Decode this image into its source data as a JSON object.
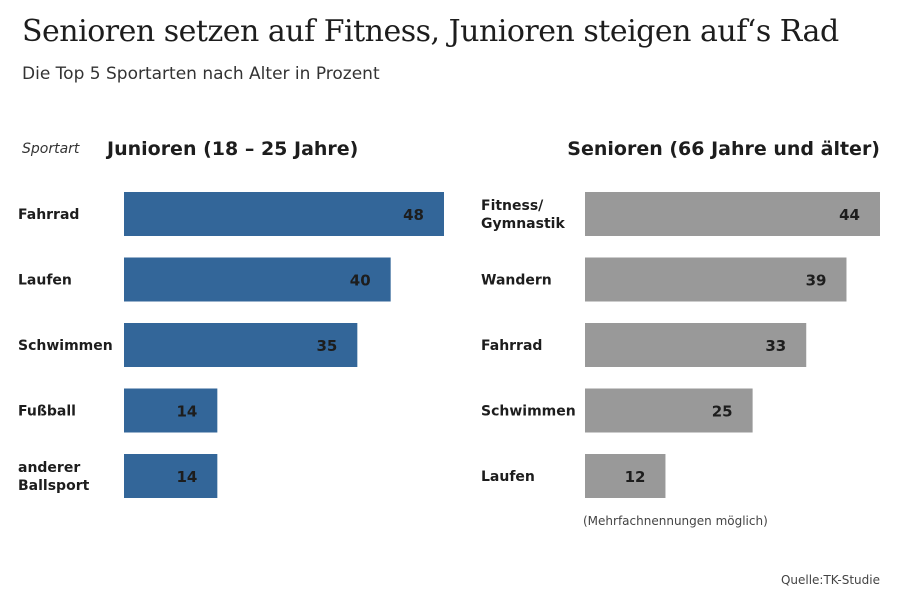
{
  "header": {
    "title": "Senioren setzen auf Fitness, Junioren steigen auf‘s Rad",
    "subtitle": "Die Top 5 Sportarten nach Alter in Prozent"
  },
  "labels": {
    "category_axis": "Sportart",
    "footnote": "(Mehrfachnennungen möglich)",
    "source": "Quelle:TK-Studie"
  },
  "colors": {
    "junioren": "#336699",
    "senioren": "#999999"
  },
  "chart_data": [
    {
      "type": "bar",
      "orientation": "horizontal",
      "title": "Junioren (18 – 25 Jahre)",
      "categories": [
        "Fahrrad",
        "Laufen",
        "Schwimmen",
        "Fußball",
        "anderer Ballsport"
      ],
      "values": [
        48,
        40,
        35,
        14,
        14
      ],
      "xlim": [
        0,
        48
      ]
    },
    {
      "type": "bar",
      "orientation": "horizontal",
      "title": "Senioren (66 Jahre und älter)",
      "categories": [
        "Fitness/ Gymnastik",
        "Wandern",
        "Fahrrad",
        "Schwimmen",
        "Laufen"
      ],
      "values": [
        44,
        39,
        33,
        25,
        12
      ],
      "xlim": [
        0,
        44
      ]
    }
  ]
}
